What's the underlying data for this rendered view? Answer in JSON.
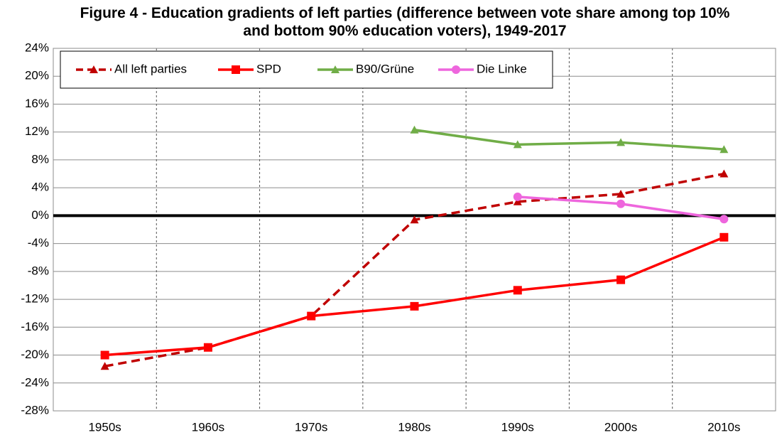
{
  "chart_data": {
    "type": "line",
    "title": "Figure 4 - Education gradients of left parties (difference between vote share among top 10% and bottom 90% education voters), 1949-2017",
    "categories": [
      "1950s",
      "1960s",
      "1970s",
      "1980s",
      "1990s",
      "2000s",
      "2010s"
    ],
    "series": [
      {
        "name": "All left parties",
        "color": "#c00000",
        "dashed": true,
        "marker": "triangle",
        "values": [
          -21.6,
          -18.9,
          -14.4,
          -0.6,
          2.0,
          3.1,
          6.0
        ]
      },
      {
        "name": "SPD",
        "color": "#ff0000",
        "dashed": false,
        "marker": "square",
        "values": [
          -20.0,
          -18.9,
          -14.4,
          -13.0,
          -10.7,
          -9.2,
          -3.1
        ]
      },
      {
        "name": "B90/Grüne",
        "color": "#70ad47",
        "dashed": false,
        "marker": "triangle",
        "values": [
          null,
          null,
          null,
          12.3,
          10.2,
          10.5,
          9.5
        ]
      },
      {
        "name": "Die Linke",
        "color": "#ee66dd",
        "dashed": false,
        "marker": "circle",
        "values": [
          null,
          null,
          null,
          null,
          2.7,
          1.7,
          -0.5
        ]
      }
    ],
    "ylim": [
      -28,
      24
    ],
    "yticks": [
      {
        "value": -28,
        "label": "-28%"
      },
      {
        "value": -24,
        "label": "-24%"
      },
      {
        "value": -20,
        "label": "-20%"
      },
      {
        "value": -16,
        "label": "-16%"
      },
      {
        "value": -12,
        "label": "-12%"
      },
      {
        "value": -8,
        "label": "-8%"
      },
      {
        "value": -4,
        "label": "-4%"
      },
      {
        "value": 0,
        "label": "0%"
      },
      {
        "value": 4,
        "label": "4%"
      },
      {
        "value": 8,
        "label": "8%"
      },
      {
        "value": 12,
        "label": "12%"
      },
      {
        "value": 16,
        "label": "16%"
      },
      {
        "value": 20,
        "label": "20%"
      },
      {
        "value": 24,
        "label": "24%"
      }
    ],
    "grid": true,
    "legend": "top-left"
  }
}
